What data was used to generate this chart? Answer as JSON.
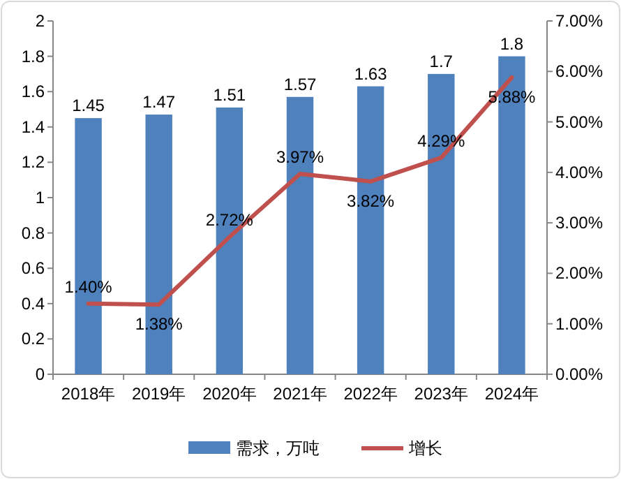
{
  "chart_data": {
    "type": "bar",
    "categories": [
      "2018年",
      "2019年",
      "2020年",
      "2021年",
      "2022年",
      "2023年",
      "2024年"
    ],
    "series": [
      {
        "name": "需求，万吨",
        "color": "#4f81bd",
        "values": [
          1.45,
          1.47,
          1.51,
          1.57,
          1.63,
          1.7,
          1.8
        ],
        "value_labels": [
          "1.45",
          "1.47",
          "1.51",
          "1.57",
          "1.63",
          "1.7",
          "1.8"
        ]
      },
      {
        "name": "增长",
        "type": "line",
        "axis": "y2",
        "color": "#c0504d",
        "values": [
          1.4,
          1.38,
          2.72,
          3.97,
          3.82,
          4.29,
          5.88
        ],
        "value_labels": [
          "1.40%",
          "1.38%",
          "2.72%",
          "3.97%",
          "3.82%",
          "4.29%",
          "5.88%"
        ]
      }
    ],
    "ylim": [
      0,
      2
    ],
    "yticks": [
      0,
      0.2,
      0.4,
      0.6,
      0.8,
      1,
      1.2,
      1.4,
      1.6,
      1.8,
      2
    ],
    "y2lim": [
      0,
      7
    ],
    "y2ticks": [
      {
        "value": 0,
        "label": "0.00%"
      },
      {
        "value": 1,
        "label": "1.00%"
      },
      {
        "value": 2,
        "label": "2.00%"
      },
      {
        "value": 3,
        "label": "3.00%"
      },
      {
        "value": 4,
        "label": "4.00%"
      },
      {
        "value": 5,
        "label": "5.00%"
      },
      {
        "value": 6,
        "label": "6.00%"
      },
      {
        "value": 7,
        "label": "7.00%"
      }
    ],
    "legend": "bottom",
    "marker": "none",
    "line_style": "solid",
    "grid": false
  }
}
